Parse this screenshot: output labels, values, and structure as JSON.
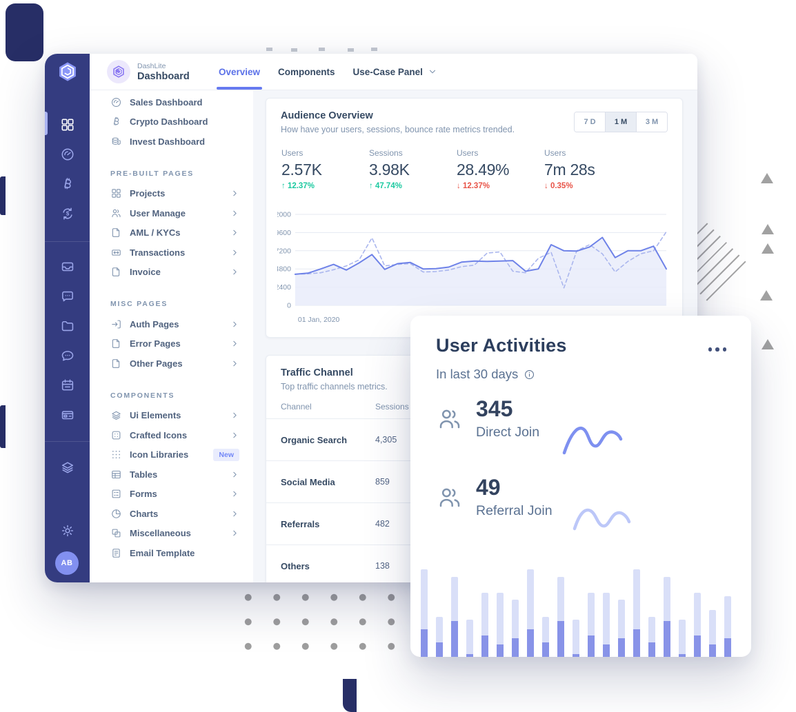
{
  "colors": {
    "accent": "#6576ff",
    "accent_deep": "#5b71e8",
    "sidebar_bg": "#343c80",
    "sidebar_icon": "#9aa5e9",
    "success": "#1cc9a0",
    "danger": "#e85347",
    "heading": "#364a63",
    "muted": "#8094ae",
    "content_bg": "#f4f6fa",
    "chart_line": "#6e82e8",
    "chart_line_dashed": "#aab6ee",
    "chart_fill": "#e7ebfa",
    "bar_light": "#d9dff8",
    "bar_dark": "#8893e8",
    "decor_gray": "#a1a1a1",
    "decor_dark": "#272e66"
  },
  "header": {
    "brand_small": "DashLite",
    "brand_name": "Dashboard",
    "tabs": [
      {
        "label": "Overview",
        "active": true,
        "chevron": false
      },
      {
        "label": "Components",
        "active": false,
        "chevron": false
      },
      {
        "label": "Use-Case Panel",
        "active": false,
        "chevron": true
      }
    ]
  },
  "rail": {
    "items": [
      {
        "icon": "grid",
        "active": true
      },
      {
        "icon": "gauge"
      },
      {
        "icon": "bitcoin"
      },
      {
        "icon": "swap"
      },
      {
        "icon": "inbox"
      },
      {
        "icon": "chat-square"
      },
      {
        "icon": "folder"
      },
      {
        "icon": "chat-round"
      },
      {
        "icon": "calendar"
      },
      {
        "icon": "wallet"
      },
      {
        "icon": "layers"
      },
      {
        "icon": "gear"
      }
    ],
    "avatar_initials": "AB"
  },
  "menu": {
    "sections": [
      {
        "label": "",
        "items": [
          {
            "icon": "gauge",
            "label": "Sales Dashboard"
          },
          {
            "icon": "bitcoin",
            "label": "Crypto Dashboard"
          },
          {
            "icon": "coins",
            "label": "Invest Dashboard"
          }
        ]
      },
      {
        "label": "PRE-BUILT PAGES",
        "items": [
          {
            "icon": "grid-sm",
            "label": "Projects",
            "chevron": true
          },
          {
            "icon": "users",
            "label": "User Manage",
            "chevron": true
          },
          {
            "icon": "file-text",
            "label": "AML / KYCs",
            "chevron": true
          },
          {
            "icon": "tx",
            "label": "Transactions",
            "chevron": true
          },
          {
            "icon": "file-text",
            "label": "Invoice",
            "chevron": true
          }
        ]
      },
      {
        "label": "MISC PAGES",
        "items": [
          {
            "icon": "sign-in",
            "label": "Auth Pages",
            "chevron": true
          },
          {
            "icon": "file-text",
            "label": "Error Pages",
            "chevron": true
          },
          {
            "icon": "file-text",
            "label": "Other Pages",
            "chevron": true
          }
        ]
      },
      {
        "label": "COMPONENTS",
        "items": [
          {
            "icon": "layers",
            "label": "Ui Elements",
            "chevron": true
          },
          {
            "icon": "icon-box",
            "label": "Crafted Icons",
            "chevron": true
          },
          {
            "icon": "dots-grid",
            "label": "Icon Libraries",
            "badge": "New"
          },
          {
            "icon": "table",
            "label": "Tables",
            "chevron": true
          },
          {
            "icon": "form",
            "label": "Forms",
            "chevron": true
          },
          {
            "icon": "pie",
            "label": "Charts",
            "chevron": true
          },
          {
            "icon": "misc",
            "label": "Miscellaneous",
            "chevron": true
          },
          {
            "icon": "email",
            "label": "Email Template"
          }
        ]
      }
    ]
  },
  "audience": {
    "title": "Audience Overview",
    "subtitle": "How have your users, sessions, bounce rate metrics trended.",
    "ranges": [
      {
        "label": "7 D",
        "active": false
      },
      {
        "label": "1 M",
        "active": true
      },
      {
        "label": "3 M",
        "active": false
      }
    ],
    "metrics": [
      {
        "label": "Users",
        "value": "2.57K",
        "delta": "12.37%",
        "direction": "up"
      },
      {
        "label": "Sessions",
        "value": "3.98K",
        "delta": "47.74%",
        "direction": "up"
      },
      {
        "label": "Users",
        "value": "28.49%",
        "delta": "12.37%",
        "direction": "down"
      },
      {
        "label": "Users",
        "value": "7m 28s",
        "delta": "0.35%",
        "direction": "down"
      }
    ],
    "chart_data": {
      "type": "line",
      "x_first_label": "01 Jan, 2020",
      "ylim": [
        0,
        12000
      ],
      "yticks": [
        0,
        2400,
        4800,
        7200,
        9600,
        12000
      ],
      "grid": true,
      "legend": "none",
      "series": [
        {
          "name": "current",
          "style": "solid",
          "values": [
            4100,
            4250,
            4800,
            5400,
            4650,
            5600,
            6700,
            4750,
            5500,
            5650,
            4800,
            4850,
            5050,
            5700,
            5850,
            5800,
            5850,
            5900,
            4500,
            4800,
            8000,
            7200,
            7150,
            7700,
            8950,
            6300,
            7200,
            7200,
            7800,
            4800
          ]
        },
        {
          "name": "previous",
          "style": "dashed",
          "values": [
            4100,
            4150,
            4300,
            4700,
            5200,
            6000,
            8900,
            5200,
            5400,
            5500,
            4400,
            4450,
            4650,
            5100,
            5300,
            6900,
            7050,
            4500,
            4300,
            6200,
            7000,
            2300,
            7200,
            8000,
            6800,
            4400,
            5800,
            6800,
            7200,
            9700
          ]
        }
      ]
    }
  },
  "traffic": {
    "title": "Traffic Channel",
    "subtitle": "Top traffic channels metrics.",
    "columns": [
      "Channel",
      "Sessions"
    ],
    "rows": [
      {
        "channel": "Organic Search",
        "sessions": "4,305"
      },
      {
        "channel": "Social Media",
        "sessions": "859"
      },
      {
        "channel": "Referrals",
        "sessions": "482"
      },
      {
        "channel": "Others",
        "sessions": "138"
      }
    ]
  },
  "activities": {
    "title": "User Activities",
    "subtitle": "In last 30 days",
    "items": [
      {
        "value": "345",
        "label": "Direct Join"
      },
      {
        "value": "49",
        "label": "Referral Join"
      }
    ],
    "chart_data": {
      "type": "bar",
      "stacked": true,
      "unit": "px",
      "series": [
        {
          "name": "filled",
          "values": [
            40,
            21,
            52,
            4,
            31,
            18,
            27,
            40,
            21,
            52,
            4,
            31,
            18,
            27,
            40,
            21,
            52,
            4,
            31,
            18,
            27
          ]
        },
        {
          "name": "total",
          "values": [
            127,
            58,
            116,
            54,
            93,
            93,
            83,
            127,
            58,
            116,
            54,
            93,
            93,
            83,
            127,
            58,
            116,
            54,
            93,
            68,
            88
          ]
        }
      ]
    }
  },
  "decor": {
    "triangle_count": 5,
    "dot_grid": {
      "rows": 3,
      "cols": 6
    }
  }
}
